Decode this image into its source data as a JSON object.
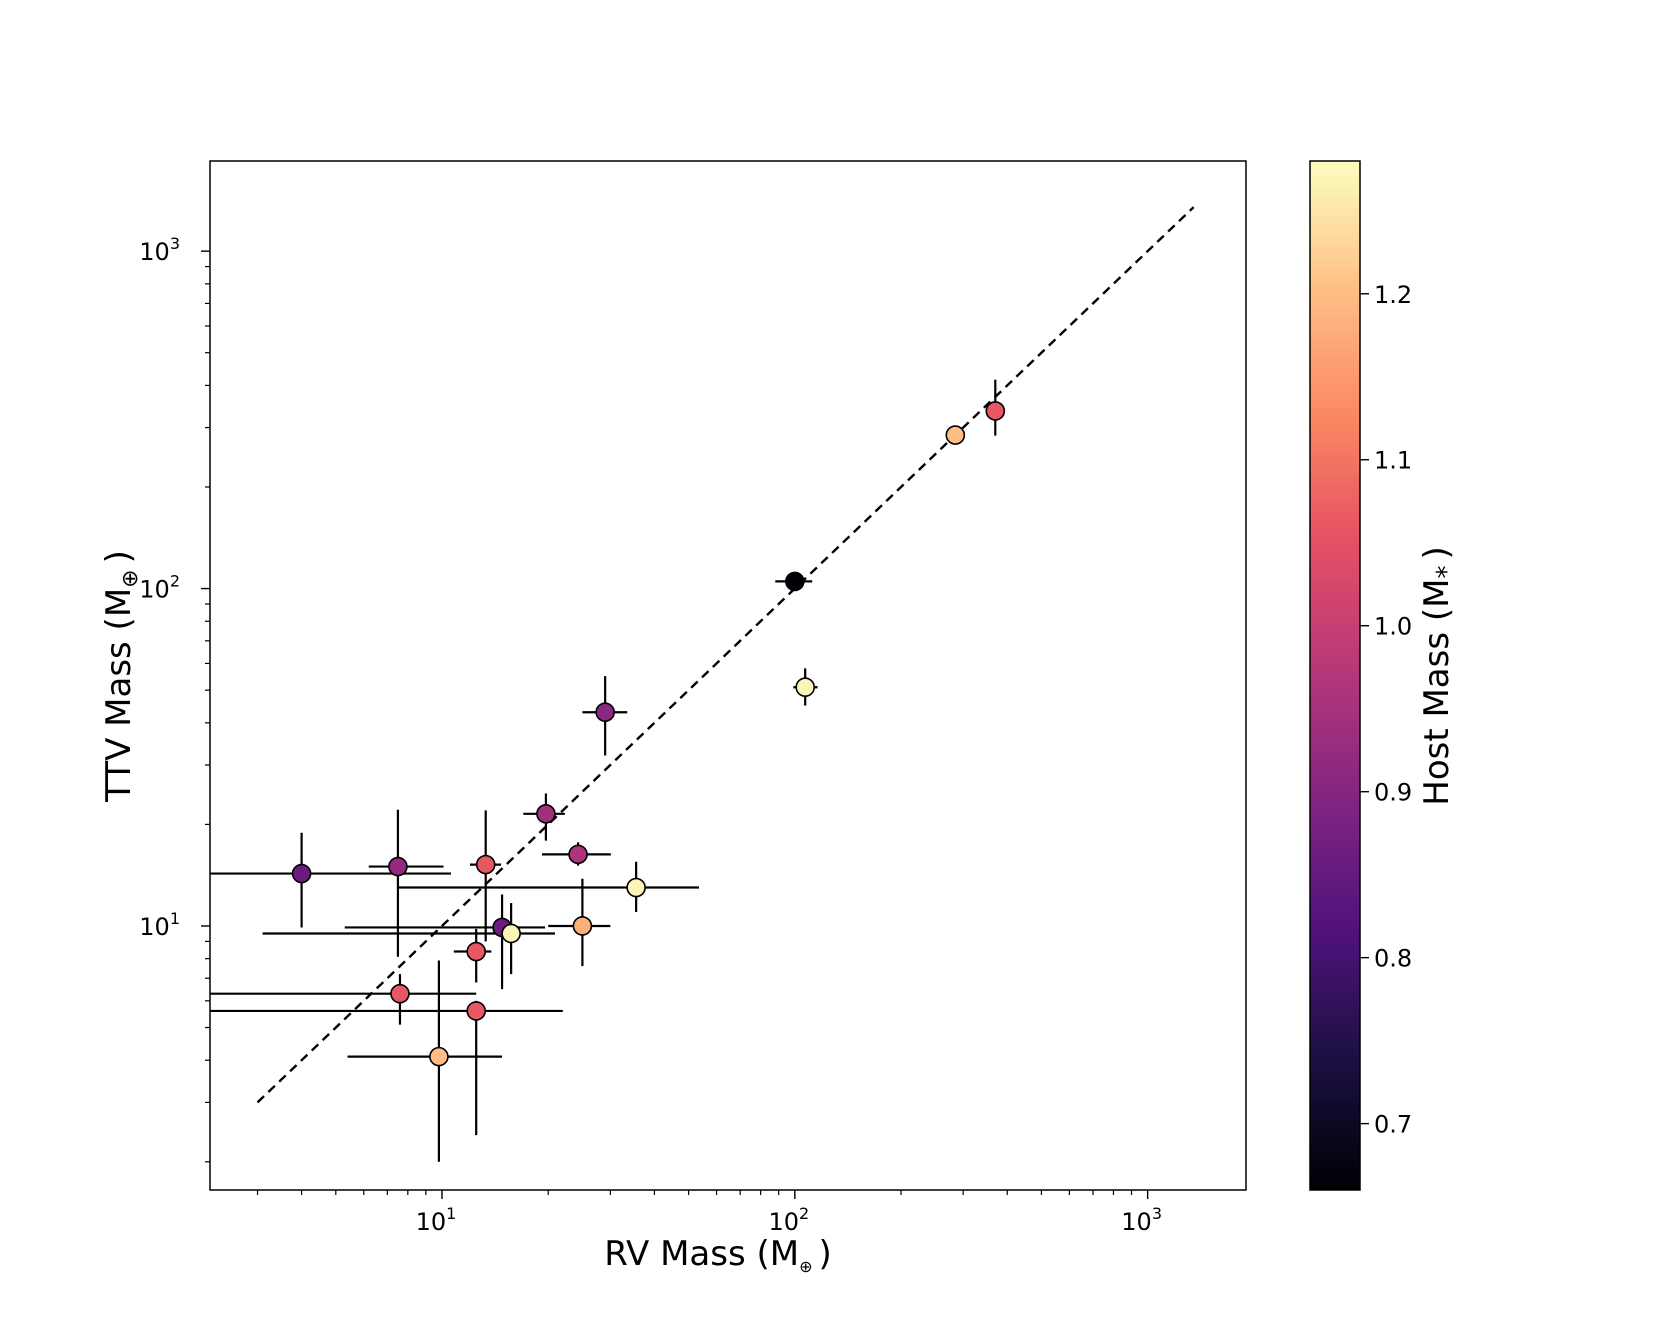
{
  "chart_data": {
    "type": "scatter",
    "xscale": "log",
    "yscale": "log",
    "xlim": [
      2.2,
      1900
    ],
    "ylim": [
      1.65,
      1850
    ],
    "x_ticks": [
      {
        "value": 10,
        "base": "10",
        "exp": "1"
      },
      {
        "value": 100,
        "base": "10",
        "exp": "2"
      },
      {
        "value": 1000,
        "base": "10",
        "exp": "3"
      }
    ],
    "y_ticks": [
      {
        "value": 10,
        "base": "10",
        "exp": "1"
      },
      {
        "value": 100,
        "base": "10",
        "exp": "2"
      },
      {
        "value": 1000,
        "base": "10",
        "exp": "3"
      }
    ],
    "xlabel": {
      "main": "RV Mass (M",
      "sub": "⊕",
      "close": ")"
    },
    "ylabel": {
      "main": "TTV Mass (M",
      "sub": "⊕",
      "close": ")"
    },
    "one_to_one_line": {
      "x": [
        3.0,
        1350
      ],
      "y": [
        3.0,
        1350
      ],
      "style": "dashed"
    },
    "colorbar": {
      "label": {
        "main": "Host Mass (M",
        "sub": "*",
        "close": ")"
      },
      "range": [
        0.66,
        1.28
      ],
      "ticks": [
        "0.7",
        "0.8",
        "0.9",
        "1.0",
        "1.1",
        "1.2"
      ],
      "tick_values": [
        0.7,
        0.8,
        0.9,
        1.0,
        1.1,
        1.2
      ],
      "colormap": "magma"
    },
    "points": [
      {
        "x": 4.0,
        "y": 14.3,
        "xerr": [
          1.8,
          6.6
        ],
        "yerr": [
          4.4,
          4.6
        ],
        "host_mass": 0.86
      },
      {
        "x": 7.5,
        "y": 15.0,
        "xerr": [
          1.3,
          2.6
        ],
        "yerr": [
          6.9,
          7.1
        ],
        "host_mass": 0.92
      },
      {
        "x": 7.6,
        "y": 6.3,
        "xerr": [
          5.4,
          4.9
        ],
        "yerr": [
          1.2,
          0.9
        ],
        "host_mass": 1.06
      },
      {
        "x": 9.8,
        "y": 4.1,
        "xerr": [
          4.4,
          5.0
        ],
        "yerr": [
          2.1,
          3.8
        ],
        "host_mass": 1.2
      },
      {
        "x": 12.5,
        "y": 8.4,
        "xerr": [
          1.7,
          1.3
        ],
        "yerr": [
          1.6,
          1.4
        ],
        "host_mass": 1.06
      },
      {
        "x": 12.5,
        "y": 5.6,
        "xerr": [
          10.3,
          9.5
        ],
        "yerr": [
          3.2,
          0.4
        ],
        "host_mass": 1.06
      },
      {
        "x": 13.3,
        "y": 15.2,
        "xerr": [
          1.3,
          1.4
        ],
        "yerr": [
          6.2,
          6.8
        ],
        "host_mass": 1.06
      },
      {
        "x": 14.8,
        "y": 9.9,
        "xerr": [
          9.5,
          4.8
        ],
        "yerr": [
          3.4,
          2.5
        ],
        "host_mass": 0.86
      },
      {
        "x": 15.7,
        "y": 9.5,
        "xerr": [
          12.6,
          5.2
        ],
        "yerr": [
          2.3,
          2.2
        ],
        "host_mass": 1.27
      },
      {
        "x": 19.7,
        "y": 21.5,
        "xerr": [
          2.7,
          2.6
        ],
        "yerr": [
          3.6,
          3.2
        ],
        "host_mass": 0.94
      },
      {
        "x": 24.3,
        "y": 16.3,
        "xerr": [
          5.1,
          5.8
        ],
        "yerr": [
          1.2,
          1.4
        ],
        "host_mass": 0.96
      },
      {
        "x": 25.0,
        "y": 10.0,
        "xerr": [
          5.0,
          5.0
        ],
        "yerr": [
          2.4,
          3.8
        ],
        "host_mass": 1.18
      },
      {
        "x": 29.0,
        "y": 43.0,
        "xerr": [
          4.0,
          4.5
        ],
        "yerr": [
          11.0,
          12.0
        ],
        "host_mass": 0.91
      },
      {
        "x": 35.5,
        "y": 13.0,
        "xerr": [
          28.0,
          18.0
        ],
        "yerr": [
          2.0,
          2.5
        ],
        "host_mass": 1.27
      },
      {
        "x": 100,
        "y": 105,
        "xerr": [
          12,
          12
        ],
        "yerr": [
          4,
          4
        ],
        "host_mass": 0.66
      },
      {
        "x": 107,
        "y": 51,
        "xerr": [
          8,
          9
        ],
        "yerr": [
          6,
          7
        ],
        "host_mass": 1.27
      },
      {
        "x": 285,
        "y": 285,
        "xerr": [
          0,
          0
        ],
        "yerr": [
          0,
          0
        ],
        "host_mass": 1.2
      },
      {
        "x": 370,
        "y": 336,
        "xerr": [
          0,
          0
        ],
        "yerr": [
          52,
          80
        ],
        "host_mass": 1.06
      }
    ]
  }
}
